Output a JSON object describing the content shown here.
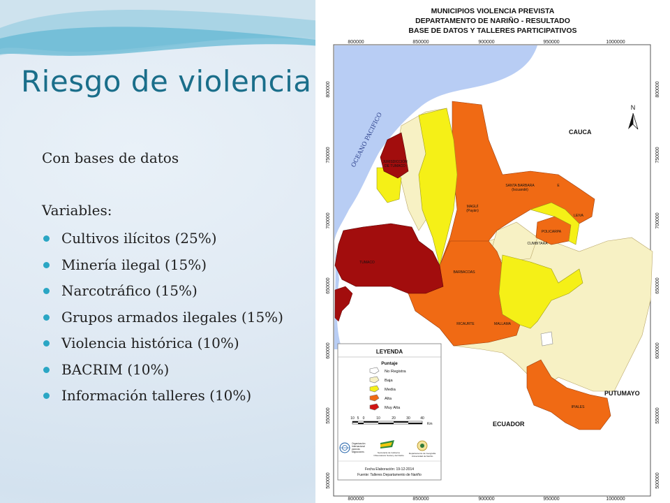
{
  "slide": {
    "title": "Riesgo de violencia",
    "subtitle": "Con bases de datos",
    "variables_label": "Variables:",
    "bullets": [
      "Cultivos ilícitos (25%)",
      "Minería ilegal (15%)",
      "Narcotráfico (15%)",
      "Grupos armados ilegales (15%)",
      "Violencia histórica (10%)",
      "BACRIM (10%)",
      "Información talleres (10%)"
    ]
  },
  "map": {
    "title_lines": [
      "MUNICIPIOS VIOLENCIA PREVISTA",
      "DEPARTAMENTO DE NARIÑO - RESULTADO",
      "BASE DE DATOS Y TALLERES PARTICIPATIVOS"
    ],
    "x_ticks": [
      "800000",
      "850000",
      "900000",
      "950000",
      "1000000"
    ],
    "y_ticks": [
      "800000",
      "750000",
      "700000",
      "650000",
      "600000",
      "550000",
      "500000"
    ],
    "ocean_label": "OCEANO PACIFICO",
    "region_labels": {
      "cauca": "CAUCA",
      "putumayo": "PUTUMAYO",
      "ecuador": "ECUADOR"
    },
    "municipality_labels": {
      "tumaco_jurisdiction": [
        "JURISDICCIÓN",
        "DE TUMACO"
      ],
      "santa_barbara": [
        "SANTA BARBARA",
        "(Iscuandé)"
      ],
      "el_charco": "EL CHARCO",
      "magui": [
        "MAGUÍ",
        "(Payán)"
      ],
      "leiva": "LEIVA",
      "policarpa": "POLICARPA",
      "cumbitara": "CUMBITARA",
      "tumaco": "TUMACO",
      "barbacoas": "BARBACOAS",
      "ricaurte": "RICAURTE",
      "mallama": "MALLAMA",
      "ipiales": "IPIALES"
    },
    "north": "N",
    "legend": {
      "title": "LEYENDA",
      "subtitle": "Puntaje",
      "items": [
        {
          "label": "No Registra",
          "color": "#ffffff"
        },
        {
          "label": "Baja",
          "color": "#f7f1c4"
        },
        {
          "label": "Media",
          "color": "#f5f017"
        },
        {
          "label": "Alta",
          "color": "#f06a14"
        },
        {
          "label": "Muy Alta",
          "color": "#a20d0d"
        }
      ],
      "scale_numbers": [
        "10",
        "5",
        "0",
        "10",
        "20",
        "30",
        "40"
      ],
      "scale_unit": "Km",
      "logos": [
        [
          "Organización",
          "Internacional",
          "para las",
          "Migraciones"
        ],
        [
          "Secretaría de Gobierno",
          "Observatorio Social y del Delito"
        ],
        [
          "Departamento de Geografía",
          "Universidad de Nariño"
        ]
      ],
      "date": "Fecha Elaboración: 19-12-2014",
      "source": "Fuente: Talleres Departamento de Nariño"
    },
    "colors": {
      "ocean": "#b8cdf4",
      "very_high": "#a20d0d",
      "high": "#f06a14",
      "medium": "#f5f017",
      "low": "#f7f1c4",
      "no_data": "#ffffff",
      "title_blue": "#1a6e8a",
      "bullet": "#2aa6c4"
    }
  }
}
